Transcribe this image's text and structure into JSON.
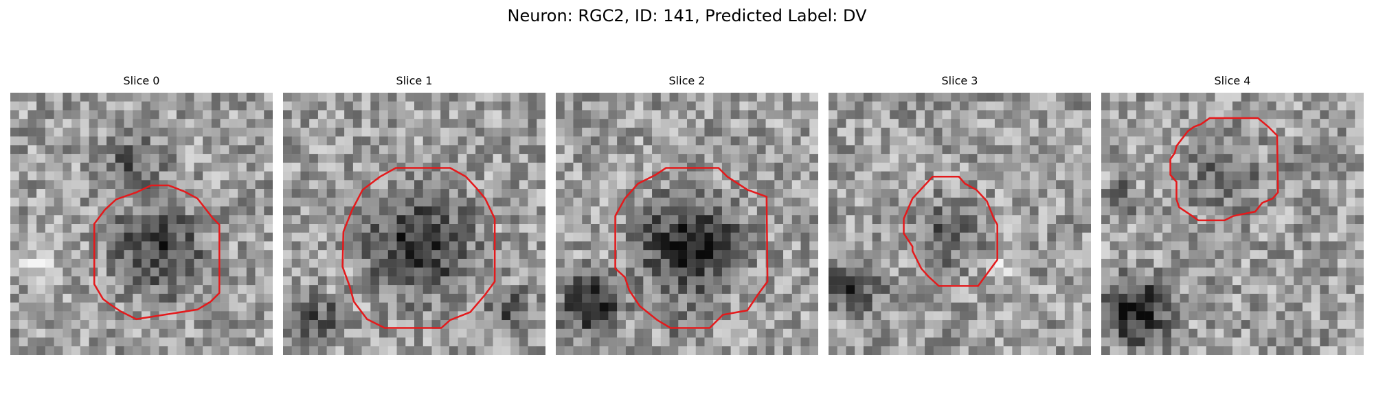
{
  "figure": {
    "title": "Neuron: RGC2, ID: 141, Predicted Label: DV"
  },
  "colors": {
    "contour": "#e41a1c",
    "background": "#ffffff"
  },
  "panels": [
    {
      "title": "Slice 0",
      "seed": 11
    },
    {
      "title": "Slice 1",
      "seed": 23
    },
    {
      "title": "Slice 2",
      "seed": 37
    },
    {
      "title": "Slice 3",
      "seed": 49
    },
    {
      "title": "Slice 4",
      "seed": 61
    }
  ]
}
